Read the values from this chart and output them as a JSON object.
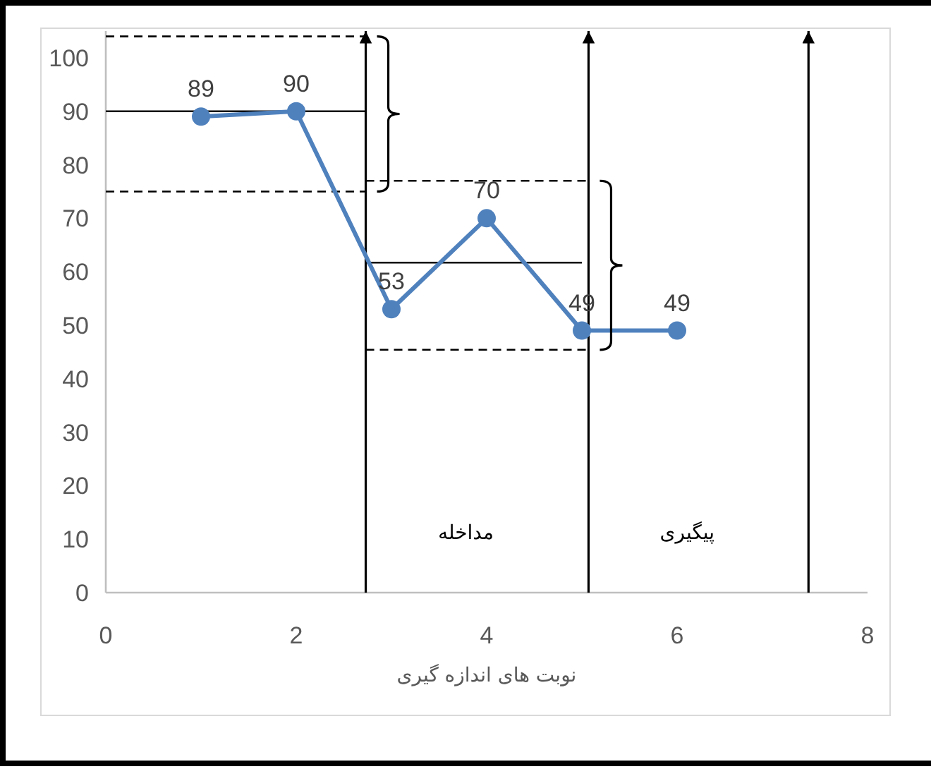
{
  "chart_data": {
    "type": "line",
    "xlabel": "نوبت های اندازه گیری",
    "xlim": [
      0,
      8
    ],
    "xticks": [
      0,
      2,
      4,
      6,
      8
    ],
    "ylim": [
      0,
      105
    ],
    "yticks": [
      0,
      10,
      20,
      30,
      40,
      50,
      60,
      70,
      80,
      90,
      100
    ],
    "grid": false,
    "series": [
      {
        "x": [
          1,
          2,
          3,
          4,
          5,
          6
        ],
        "values": [
          89,
          90,
          53,
          70,
          49,
          49
        ],
        "color": "#4f81bd",
        "marker": "circle",
        "line_style": "solid",
        "value_labels": [
          "89",
          "90",
          "53",
          "70",
          "49",
          "49"
        ]
      },
      {
        "x": [
          0,
          2.73
        ],
        "values": [
          90,
          90
        ],
        "color": "#000000",
        "marker": "none",
        "line_style": "solid"
      },
      {
        "x": [
          0,
          2.73
        ],
        "values": [
          104,
          104
        ],
        "color": "#000000",
        "marker": "none",
        "line_style": "dashed"
      },
      {
        "x": [
          0,
          2.73
        ],
        "values": [
          75,
          75
        ],
        "color": "#000000",
        "marker": "none",
        "line_style": "dashed"
      },
      {
        "x": [
          2.73,
          5.0
        ],
        "values": [
          61.7,
          61.7
        ],
        "color": "#000000",
        "marker": "none",
        "line_style": "solid"
      },
      {
        "x": [
          2.73,
          5.07
        ],
        "values": [
          77,
          77
        ],
        "color": "#000000",
        "marker": "none",
        "line_style": "dashed"
      },
      {
        "x": [
          2.73,
          5.07
        ],
        "values": [
          45.4,
          45.4
        ],
        "color": "#000000",
        "marker": "none",
        "line_style": "dashed"
      }
    ],
    "ref_lines": [
      {
        "axis": "x",
        "value": 2.73,
        "label": null,
        "color": "#000000",
        "line_style": "solid"
      },
      {
        "axis": "x",
        "value": 5.07,
        "label": null,
        "color": "#000000",
        "line_style": "solid"
      },
      {
        "axis": "x",
        "value": 7.38,
        "label": null,
        "color": "#000000",
        "line_style": "solid"
      }
    ],
    "annotations": [
      "مداخله",
      "پیگیری"
    ]
  }
}
